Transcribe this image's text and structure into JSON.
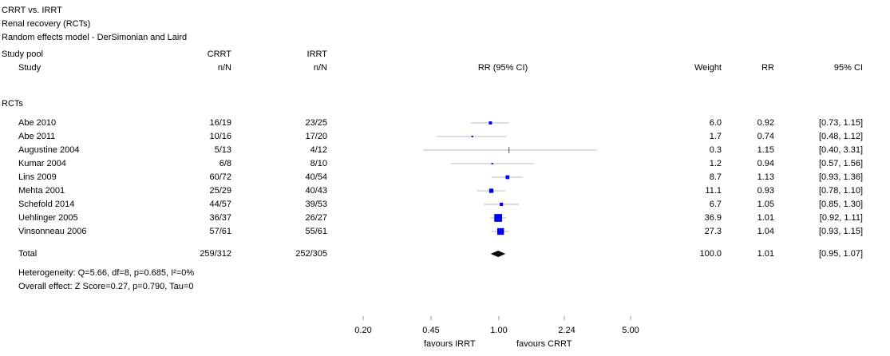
{
  "header": {
    "title": "CRRT vs. IRRT",
    "outcome": "Renal recovery (RCTs)",
    "model": "Random effects model - DerSimonian and Laird"
  },
  "columns": {
    "pool": "Study pool",
    "study": "Study",
    "crrt": "CRRT",
    "crrt_sub": "n/N",
    "irrt": "IRRT",
    "irrt_sub": "n/N",
    "rr_ci": "RR (95% CI)",
    "weight": "Weight",
    "rr": "RR",
    "ci": "95% CI"
  },
  "group": "RCTs",
  "studies": [
    {
      "name": "Abe 2010",
      "crrt": "16/19",
      "irrt": "23/25",
      "weight": "6.0",
      "rr": "0.92",
      "ci": "[0.73, 1.15]"
    },
    {
      "name": "Abe 2011",
      "crrt": "10/16",
      "irrt": "17/20",
      "weight": "1.7",
      "rr": "0.74",
      "ci": "[0.48, 1.12]"
    },
    {
      "name": "Augustine 2004",
      "crrt": "5/13",
      "irrt": "4/12",
      "weight": "0.3",
      "rr": "1.15",
      "ci": "[0.40, 3.31]"
    },
    {
      "name": "Kumar 2004",
      "crrt": "6/8",
      "irrt": "8/10",
      "weight": "1.2",
      "rr": "0.94",
      "ci": "[0.57, 1.56]"
    },
    {
      "name": "Lins 2009",
      "crrt": "60/72",
      "irrt": "40/54",
      "weight": "8.7",
      "rr": "1.13",
      "ci": "[0.93, 1.36]"
    },
    {
      "name": "Mehta 2001",
      "crrt": "25/29",
      "irrt": "40/43",
      "weight": "11.1",
      "rr": "0.93",
      "ci": "[0.78, 1.10]"
    },
    {
      "name": "Schefold 2014",
      "crrt": "44/57",
      "irrt": "39/53",
      "weight": "6.7",
      "rr": "1.05",
      "ci": "[0.85, 1.30]"
    },
    {
      "name": "Uehlinger 2005",
      "crrt": "36/37",
      "irrt": "26/27",
      "weight": "36.9",
      "rr": "1.01",
      "ci": "[0.92, 1.11]"
    },
    {
      "name": "Vinsonneau 2006",
      "crrt": "57/61",
      "irrt": "55/61",
      "weight": "27.3",
      "rr": "1.04",
      "ci": "[0.93, 1.15]"
    }
  ],
  "total": {
    "name": "Total",
    "crrt": "259/312",
    "irrt": "252/305",
    "weight": "100.0",
    "rr": "1.01",
    "ci": "[0.95, 1.07]"
  },
  "heterogeneity": "Heterogeneity: Q=5.66, df=8, p=0.685, I²=0%",
  "overall_effect": "Overall effect: Z Score=0.27, p=0.790, Tau=0",
  "axis": {
    "ticks": [
      "0.20",
      "0.45",
      "1.00",
      "2.24",
      "5.00"
    ],
    "left_label": "favours IRRT",
    "right_label": "favours CRRT"
  },
  "colors": {
    "marker": "#0000ee",
    "diamond": "#000000",
    "ci_line": "#bbbbbb",
    "axis": "#999999"
  },
  "chart_data": {
    "type": "forest",
    "scale": "log",
    "xlim": [
      0.2,
      5.0
    ],
    "null_value": 1.0,
    "ticks": [
      0.2,
      0.45,
      1.0,
      2.24,
      5.0
    ],
    "studies": [
      {
        "name": "Abe 2010",
        "rr": 0.92,
        "lo": 0.73,
        "hi": 1.15,
        "weight": 6.0
      },
      {
        "name": "Abe 2011",
        "rr": 0.74,
        "lo": 0.48,
        "hi": 1.12,
        "weight": 1.7
      },
      {
        "name": "Augustine 2004",
        "rr": 1.15,
        "lo": 0.4,
        "hi": 3.31,
        "weight": 0.3
      },
      {
        "name": "Kumar 2004",
        "rr": 0.94,
        "lo": 0.57,
        "hi": 1.56,
        "weight": 1.2
      },
      {
        "name": "Lins 2009",
        "rr": 1.13,
        "lo": 0.93,
        "hi": 1.36,
        "weight": 8.7
      },
      {
        "name": "Mehta 2001",
        "rr": 0.93,
        "lo": 0.78,
        "hi": 1.1,
        "weight": 11.1
      },
      {
        "name": "Schefold 2014",
        "rr": 1.05,
        "lo": 0.85,
        "hi": 1.3,
        "weight": 6.7
      },
      {
        "name": "Uehlinger 2005",
        "rr": 1.01,
        "lo": 0.92,
        "hi": 1.11,
        "weight": 36.9
      },
      {
        "name": "Vinsonneau 2006",
        "rr": 1.04,
        "lo": 0.93,
        "hi": 1.15,
        "weight": 27.3
      }
    ],
    "pooled": {
      "name": "Total",
      "rr": 1.01,
      "lo": 0.95,
      "hi": 1.07,
      "weight": 100.0
    }
  }
}
